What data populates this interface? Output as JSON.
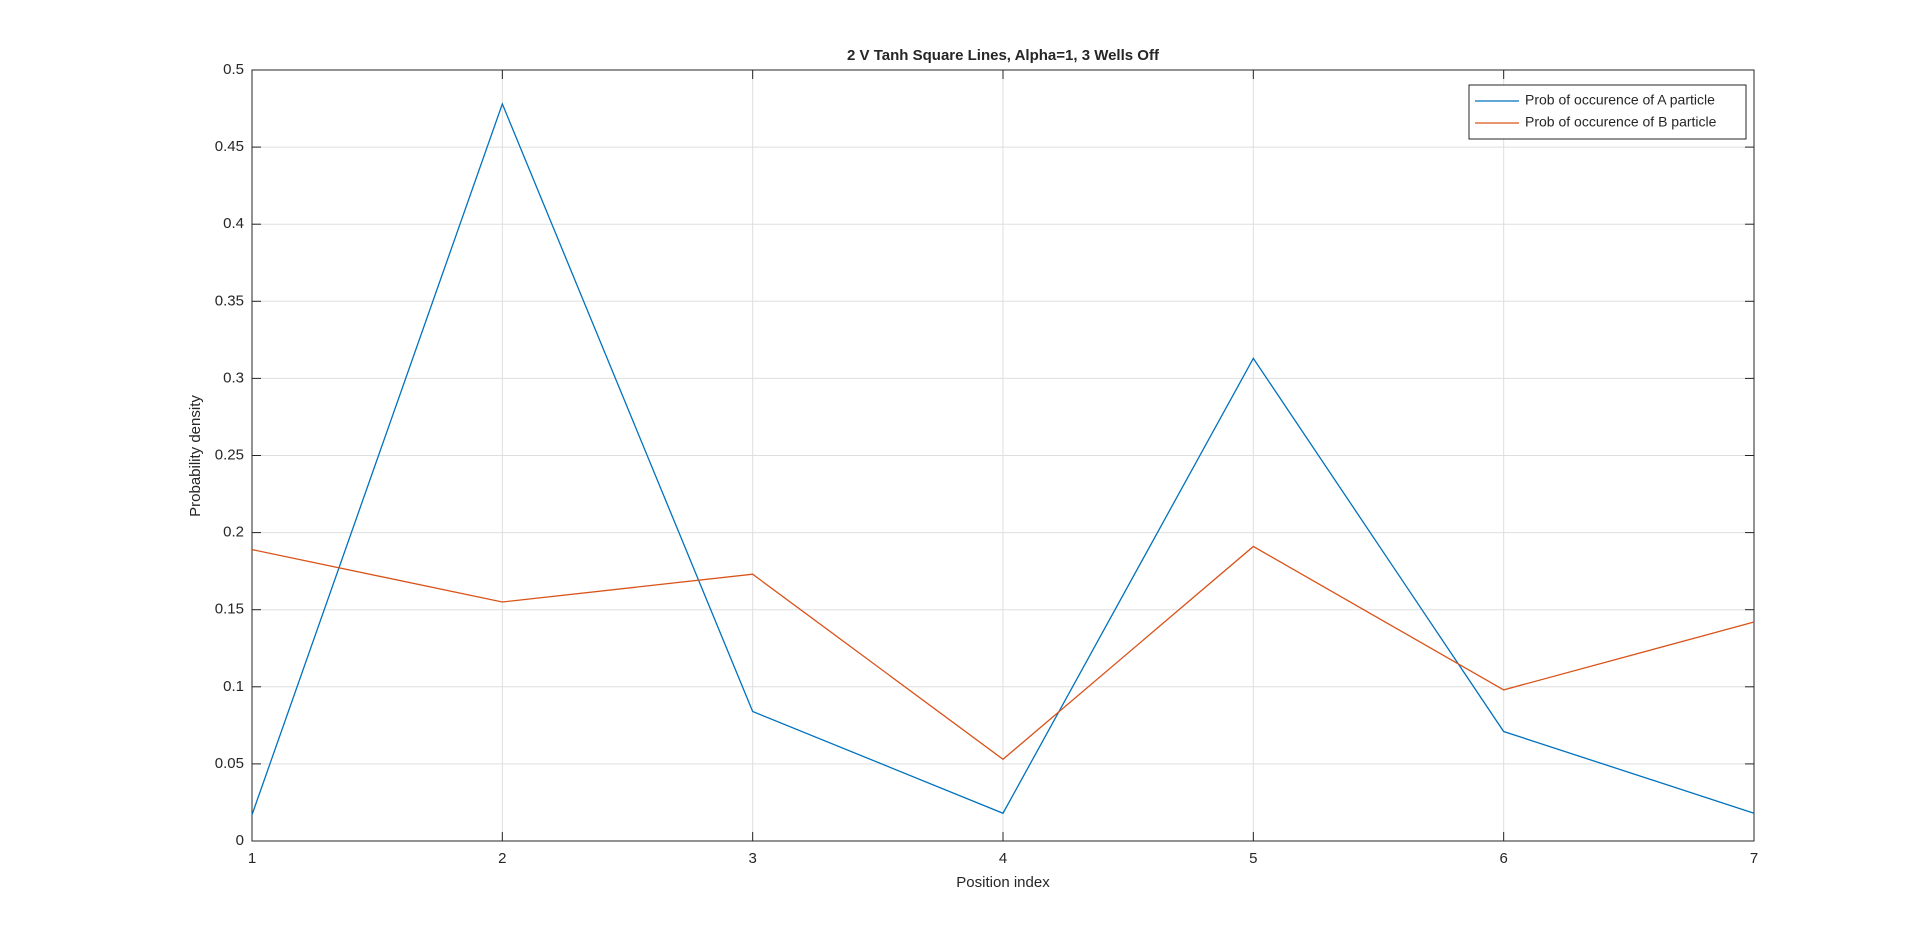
{
  "chart_data": {
    "type": "line",
    "title": "2 V Tanh Square Lines, Alpha=1, 3 Wells Off",
    "x_label": "Position index",
    "y_label": "Probability density",
    "x": [
      1,
      2,
      3,
      4,
      5,
      6,
      7
    ],
    "series": [
      {
        "name": "Prob of occurence of A particle",
        "color": "#0072bd",
        "values": [
          0.017,
          0.478,
          0.084,
          0.018,
          0.313,
          0.071,
          0.018
        ]
      },
      {
        "name": "Prob of occurence of B particle",
        "color": "#d95319",
        "values": [
          0.189,
          0.155,
          0.173,
          0.053,
          0.191,
          0.098,
          0.142
        ]
      }
    ],
    "xlim": [
      1,
      7
    ],
    "xticks": [
      1,
      2,
      3,
      4,
      5,
      6,
      7
    ],
    "ylim": [
      0,
      0.5
    ],
    "yticks": [
      0,
      0.05,
      0.1,
      0.15,
      0.2,
      0.25,
      0.3,
      0.35,
      0.4,
      0.45,
      0.5
    ],
    "grid": true,
    "legend": "top-right"
  }
}
